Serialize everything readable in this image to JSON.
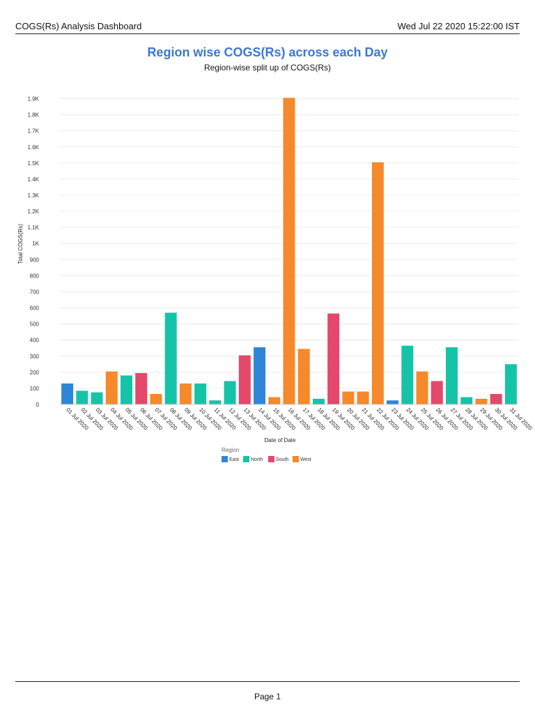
{
  "header": {
    "title": "COGS(Rs) Analysis Dashboard",
    "timestamp": "Wed Jul 22 2020 15:22:00 IST"
  },
  "footer": {
    "page_label": "Page 1"
  },
  "colors": {
    "East": "#2f86d6",
    "North": "#15c4a8",
    "South": "#e4486a",
    "West": "#f5892c",
    "title": "#3a78d4"
  },
  "chart_data": {
    "type": "bar",
    "title": "Region wise COGS(Rs) across each Day",
    "subtitle": "Region-wise split up of COGS(Rs)",
    "xlabel": "Date of Date",
    "ylabel": "Total COGS(Rs)",
    "ylim": [
      0,
      1950
    ],
    "yticks": [
      {
        "value": 0,
        "label": "0"
      },
      {
        "value": 100,
        "label": "100"
      },
      {
        "value": 200,
        "label": "200"
      },
      {
        "value": 300,
        "label": "300"
      },
      {
        "value": 400,
        "label": "400"
      },
      {
        "value": 500,
        "label": "500"
      },
      {
        "value": 600,
        "label": "600"
      },
      {
        "value": 700,
        "label": "700"
      },
      {
        "value": 800,
        "label": "800"
      },
      {
        "value": 900,
        "label": "900"
      },
      {
        "value": 1000,
        "label": "1K"
      },
      {
        "value": 1100,
        "label": "1.1K"
      },
      {
        "value": 1200,
        "label": "1.2K"
      },
      {
        "value": 1300,
        "label": "1.3K"
      },
      {
        "value": 1400,
        "label": "1.4K"
      },
      {
        "value": 1500,
        "label": "1.5K"
      },
      {
        "value": 1600,
        "label": "1.6K"
      },
      {
        "value": 1700,
        "label": "1.7K"
      },
      {
        "value": 1800,
        "label": "1.8K"
      },
      {
        "value": 1900,
        "label": "1.9K"
      }
    ],
    "grid": true,
    "legend": {
      "title": "Region",
      "position": "bottom",
      "entries": [
        "East",
        "North",
        "South",
        "West"
      ]
    },
    "bars": [
      {
        "date": "01 Jul 2020",
        "region": "East",
        "value": 130
      },
      {
        "date": "02 Jul 2020",
        "region": "North",
        "value": 85
      },
      {
        "date": "03 Jul 2020",
        "region": "North",
        "value": 75
      },
      {
        "date": "04 Jul 2020",
        "region": "West",
        "value": 205
      },
      {
        "date": "05 Jul 2020",
        "region": "North",
        "value": 180
      },
      {
        "date": "06 Jul 2020",
        "region": "South",
        "value": 195
      },
      {
        "date": "07 Jul 2020",
        "region": "West",
        "value": 65
      },
      {
        "date": "08 Jul 2020",
        "region": "North",
        "value": 570
      },
      {
        "date": "09 Jul 2020",
        "region": "West",
        "value": 130
      },
      {
        "date": "10 Jul 2020",
        "region": "North",
        "value": 130
      },
      {
        "date": "11 Jul 2020",
        "region": "North",
        "value": 25
      },
      {
        "date": "12 Jul 2020",
        "region": "North",
        "value": 145
      },
      {
        "date": "13 Jul 2020",
        "region": "South",
        "value": 305
      },
      {
        "date": "14 Jul 2020",
        "region": "East",
        "value": 355
      },
      {
        "date": "15 Jul 2020",
        "region": "West",
        "value": 45
      },
      {
        "date": "16 Jul 2020",
        "region": "West",
        "value": 1905
      },
      {
        "date": "17 Jul 2020",
        "region": "West",
        "value": 345
      },
      {
        "date": "18 Jul 2020",
        "region": "North",
        "value": 35
      },
      {
        "date": "19 Jul 2020",
        "region": "South",
        "value": 565
      },
      {
        "date": "20 Jul 2020",
        "region": "West",
        "value": 80
      },
      {
        "date": "21 Jul 2020",
        "region": "West",
        "value": 80
      },
      {
        "date": "22 Jul 2020",
        "region": "West",
        "value": 1505
      },
      {
        "date": "23 Jul 2020",
        "region": "East",
        "value": 25
      },
      {
        "date": "24 Jul 2020",
        "region": "North",
        "value": 365
      },
      {
        "date": "25 Jul 2020",
        "region": "West",
        "value": 205
      },
      {
        "date": "26 Jul 2020",
        "region": "South",
        "value": 145
      },
      {
        "date": "27 Jul 2020",
        "region": "North",
        "value": 355
      },
      {
        "date": "28 Jul 2020",
        "region": "North",
        "value": 45
      },
      {
        "date": "29 Jul 2020",
        "region": "West",
        "value": 35
      },
      {
        "date": "30 Jul 2020",
        "region": "South",
        "value": 65
      },
      {
        "date": "31 Jul 2020",
        "region": "North",
        "value": 250
      }
    ]
  }
}
